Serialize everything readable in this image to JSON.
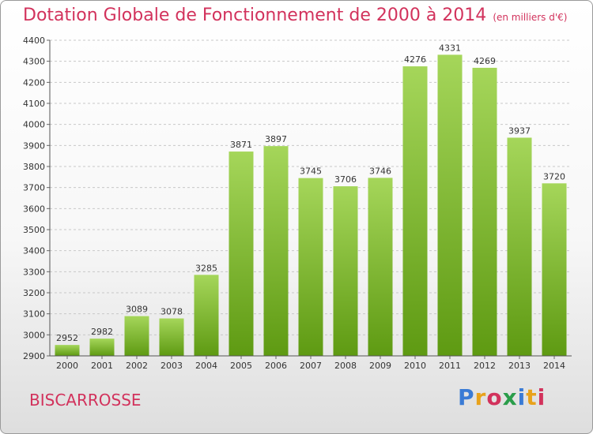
{
  "header": {
    "title": "Dotation Globale de Fonctionnement de 2000 à 2014",
    "unit": "(en milliers d'€)"
  },
  "footer": {
    "city": "BISCARROSSE",
    "brand": "Proxiti"
  },
  "colors": {
    "accent": "#d2325c",
    "bar_top": "#a5d65a",
    "bar_bottom": "#5e9a12"
  },
  "chart_data": {
    "type": "bar",
    "title": "Dotation Globale de Fonctionnement de 2000 à 2014",
    "subtitle": "(en milliers d'€)",
    "xlabel": "",
    "ylabel": "",
    "categories": [
      "2000",
      "2001",
      "2002",
      "2003",
      "2004",
      "2005",
      "2006",
      "2007",
      "2008",
      "2009",
      "2010",
      "2011",
      "2012",
      "2013",
      "2014"
    ],
    "values": [
      2952,
      2982,
      3089,
      3078,
      3285,
      3871,
      3897,
      3745,
      3706,
      3746,
      4276,
      4331,
      4269,
      3937,
      3720
    ],
    "ylim": [
      2900,
      4400
    ],
    "yticks": [
      2900,
      3000,
      3100,
      3200,
      3300,
      3400,
      3500,
      3600,
      3700,
      3800,
      3900,
      4000,
      4100,
      4200,
      4300,
      4400
    ],
    "grid": true,
    "legend": "none"
  }
}
